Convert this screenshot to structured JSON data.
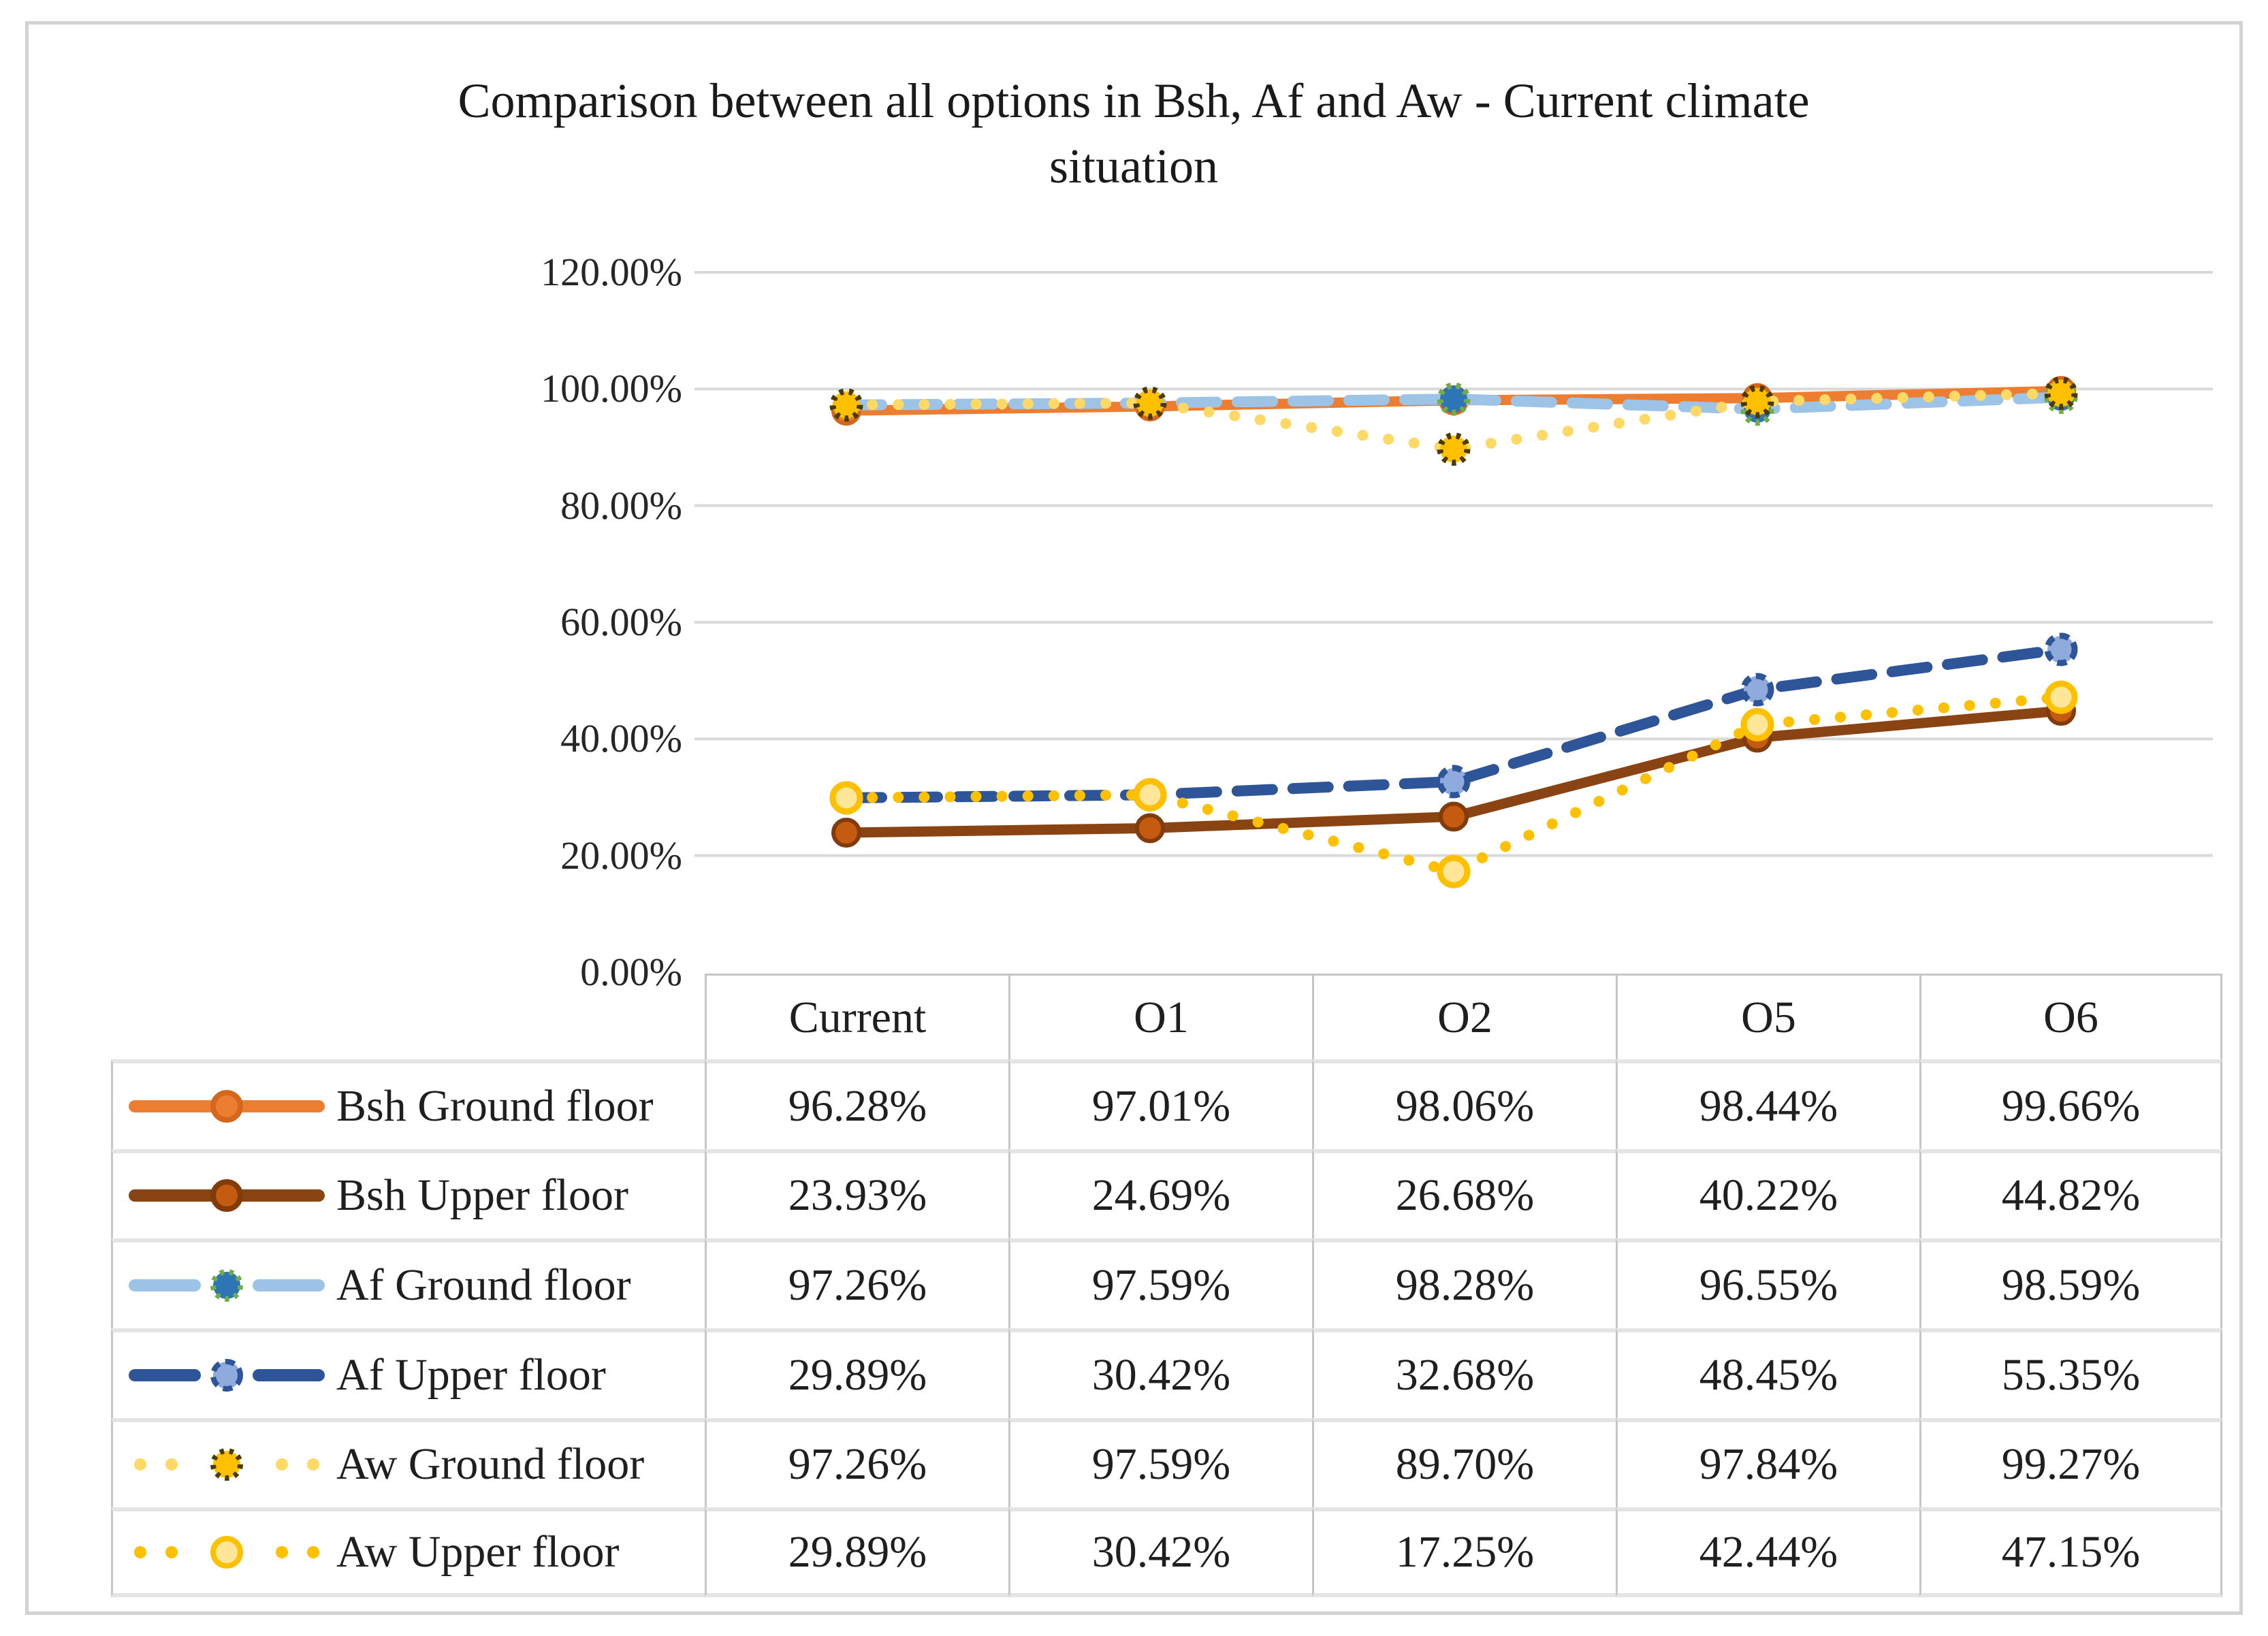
{
  "title": {
    "line1": "Comparison between all options in Bsh, Af and Aw - Current climate",
    "line2": "situation"
  },
  "colors": {
    "bsh_ground_orange": "#ED7D31",
    "bsh_upper_brown": "#8A4413",
    "af_ground_light_blue": "#9DC3E6",
    "af_ground_marker_blue": "#2E75B6",
    "af_ground_marker_ring_green": "#70AD47",
    "af_upper_dark_blue": "#2E5597",
    "af_upper_marker_periwinkle": "#8FAADC",
    "aw_ground_light_yellow": "#FFD966",
    "aw_ground_marker_gold": "#FFC000",
    "aw_ground_marker_ring_dark": "#4A3A00",
    "aw_upper_gold": "#FFC000",
    "aw_upper_marker_pale_yellow": "#FFE699",
    "gridline_gray": "#D9D9D9",
    "table_line_gray": "#C6C6C6",
    "frame_gray": "#D3D3D3"
  },
  "chart_data": {
    "type": "line",
    "title": "Comparison between all options in Bsh, Af and Aw - Current climate situation",
    "categories": [
      "Current",
      "O1",
      "O2",
      "O5",
      "O6"
    ],
    "y_axis": {
      "min": 0,
      "max": 120,
      "grid": true,
      "ticks": [
        {
          "label": "120.00%",
          "value": 120
        },
        {
          "label": "100.00%",
          "value": 100
        },
        {
          "label": "80.00%",
          "value": 80
        },
        {
          "label": "60.00%",
          "value": 60
        },
        {
          "label": "40.00%",
          "value": 40
        },
        {
          "label": "20.00%",
          "value": 20
        },
        {
          "label": "0.00%",
          "value": 0
        }
      ]
    },
    "legend_position": "table-left-column",
    "series": [
      {
        "name": "Bsh Ground floor",
        "values": [
          96.28,
          97.01,
          98.06,
          98.44,
          99.66
        ],
        "line": {
          "color": "#ED7D31",
          "pattern": "solid"
        },
        "marker": {
          "fill": "#ED7D31",
          "ring": "#D4671E",
          "ring_pattern": "solid"
        }
      },
      {
        "name": "Bsh Upper floor",
        "values": [
          23.93,
          24.69,
          26.68,
          40.22,
          44.82
        ],
        "line": {
          "color": "#8A4413",
          "pattern": "solid"
        },
        "marker": {
          "fill": "#C55A11",
          "ring": "#823B0B",
          "ring_pattern": "solid"
        }
      },
      {
        "name": "Af Ground floor",
        "values": [
          97.26,
          97.59,
          98.28,
          96.55,
          98.59
        ],
        "line": {
          "color": "#9DC3E6",
          "pattern": "dash"
        },
        "marker": {
          "fill": "#2E75B6",
          "ring": "#70AD47",
          "ring_pattern": "dot"
        }
      },
      {
        "name": "Af Upper floor",
        "values": [
          29.89,
          30.42,
          32.68,
          48.45,
          55.35
        ],
        "line": {
          "color": "#2E5597",
          "pattern": "dash"
        },
        "marker": {
          "fill": "#8FAADC",
          "ring": "#2E5597",
          "ring_pattern": "dash"
        }
      },
      {
        "name": "Aw Ground floor",
        "values": [
          97.26,
          97.59,
          89.7,
          97.84,
          99.27
        ],
        "line": {
          "color": "#FFD966",
          "pattern": "dot"
        },
        "marker": {
          "fill": "#FFC000",
          "ring": "#4A3A00",
          "ring_pattern": "dot"
        }
      },
      {
        "name": "Aw Upper floor",
        "values": [
          29.89,
          30.42,
          17.25,
          42.44,
          47.15
        ],
        "line": {
          "color": "#FFC000",
          "pattern": "dot"
        },
        "marker": {
          "fill": "#FFE699",
          "ring": "#FFC000",
          "ring_pattern": "solid"
        }
      }
    ]
  },
  "table": {
    "header": [
      "Current",
      "O1",
      "O2",
      "O5",
      "O6"
    ],
    "rows": [
      {
        "label": "Bsh Ground floor",
        "values": [
          "96.28%",
          "97.01%",
          "98.06%",
          "98.44%",
          "99.66%"
        ]
      },
      {
        "label": "Bsh Upper floor",
        "values": [
          "23.93%",
          "24.69%",
          "26.68%",
          "40.22%",
          "44.82%"
        ]
      },
      {
        "label": "Af Ground floor",
        "values": [
          "97.26%",
          "97.59%",
          "98.28%",
          "96.55%",
          "98.59%"
        ]
      },
      {
        "label": "Af Upper floor",
        "values": [
          "29.89%",
          "30.42%",
          "32.68%",
          "48.45%",
          "55.35%"
        ]
      },
      {
        "label": "Aw Ground floor",
        "values": [
          "97.26%",
          "97.59%",
          "89.70%",
          "97.84%",
          "99.27%"
        ]
      },
      {
        "label": "Aw Upper floor",
        "values": [
          "29.89%",
          "30.42%",
          "17.25%",
          "42.44%",
          "47.15%"
        ]
      }
    ]
  }
}
